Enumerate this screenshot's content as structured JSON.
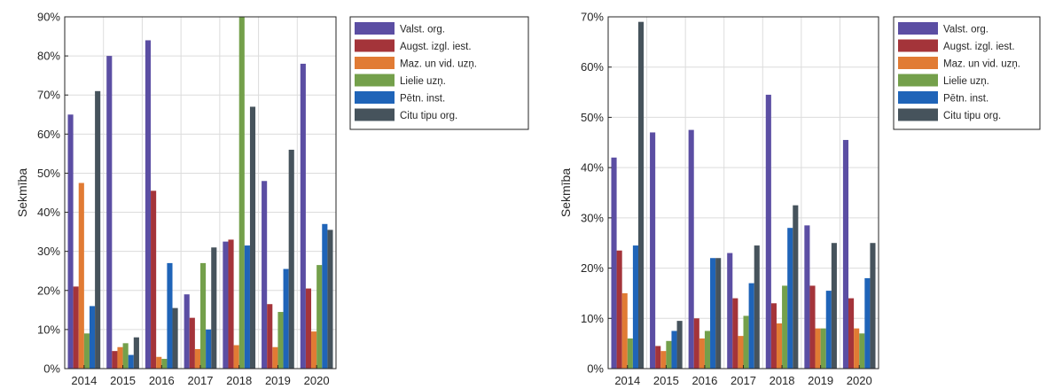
{
  "chart_data": [
    {
      "type": "bar",
      "ylabel": "Sekmība",
      "xlabel": "",
      "ylim": [
        0,
        90
      ],
      "yticks": [
        0,
        10,
        20,
        30,
        40,
        50,
        60,
        70,
        80,
        90
      ],
      "ytick_labels": [
        "0%",
        "10%",
        "20%",
        "30%",
        "40%",
        "50%",
        "60%",
        "70%",
        "80%",
        "90%"
      ],
      "grid": true,
      "legend": "outside-top-right",
      "categories": [
        "2014",
        "2015",
        "2016",
        "2017",
        "2018",
        "2019",
        "2020"
      ],
      "series": [
        {
          "name": "Valst. org.",
          "color": "#5b4ea3",
          "values": [
            65,
            80,
            84,
            19,
            32.5,
            48,
            78
          ]
        },
        {
          "name": "Augst. izgl. iest.",
          "color": "#a4343a",
          "values": [
            21,
            4.5,
            45.5,
            13,
            33,
            16.5,
            20.5
          ]
        },
        {
          "name": "Maz. un vid. uzņ.",
          "color": "#e17b34",
          "values": [
            47.5,
            5.5,
            3,
            5,
            6,
            5.5,
            9.5
          ]
        },
        {
          "name": "Lielie uzņ.",
          "color": "#74a04b",
          "values": [
            9,
            6.5,
            2.5,
            27,
            90,
            14.5,
            26.5
          ]
        },
        {
          "name": "Pētn. inst.",
          "color": "#1f64b8",
          "values": [
            16,
            3.5,
            27,
            10,
            31.5,
            25.5,
            37
          ]
        },
        {
          "name": "Citu tipu org.",
          "color": "#46535c",
          "values": [
            71,
            8,
            15.5,
            31,
            67,
            56,
            35.5
          ]
        }
      ]
    },
    {
      "type": "bar",
      "ylabel": "Sekmība",
      "xlabel": "",
      "ylim": [
        0,
        70
      ],
      "yticks": [
        0,
        10,
        20,
        30,
        40,
        50,
        60,
        70
      ],
      "ytick_labels": [
        "0%",
        "10%",
        "20%",
        "30%",
        "40%",
        "50%",
        "60%",
        "70%"
      ],
      "grid": true,
      "legend": "outside-top-right",
      "categories": [
        "2014",
        "2015",
        "2016",
        "2017",
        "2018",
        "2019",
        "2020"
      ],
      "series": [
        {
          "name": "Valst. org.",
          "color": "#5b4ea3",
          "values": [
            42,
            47,
            47.5,
            23,
            54.5,
            28.5,
            45.5
          ]
        },
        {
          "name": "Augst. izgl. iest.",
          "color": "#a4343a",
          "values": [
            23.5,
            4.5,
            10,
            14,
            13,
            16.5,
            14
          ]
        },
        {
          "name": "Maz. un vid. uzņ.",
          "color": "#e17b34",
          "values": [
            15,
            3.5,
            6,
            6.5,
            9,
            8,
            8
          ]
        },
        {
          "name": "Lielie uzņ.",
          "color": "#74a04b",
          "values": [
            6,
            5.5,
            7.5,
            10.5,
            16.5,
            8,
            7
          ]
        },
        {
          "name": "Pētn. inst.",
          "color": "#1f64b8",
          "values": [
            24.5,
            7.5,
            22,
            17,
            28,
            15.5,
            18
          ]
        },
        {
          "name": "Citu tipu org.",
          "color": "#46535c",
          "values": [
            69,
            9.5,
            22,
            24.5,
            32.5,
            25,
            25
          ]
        }
      ]
    }
  ]
}
